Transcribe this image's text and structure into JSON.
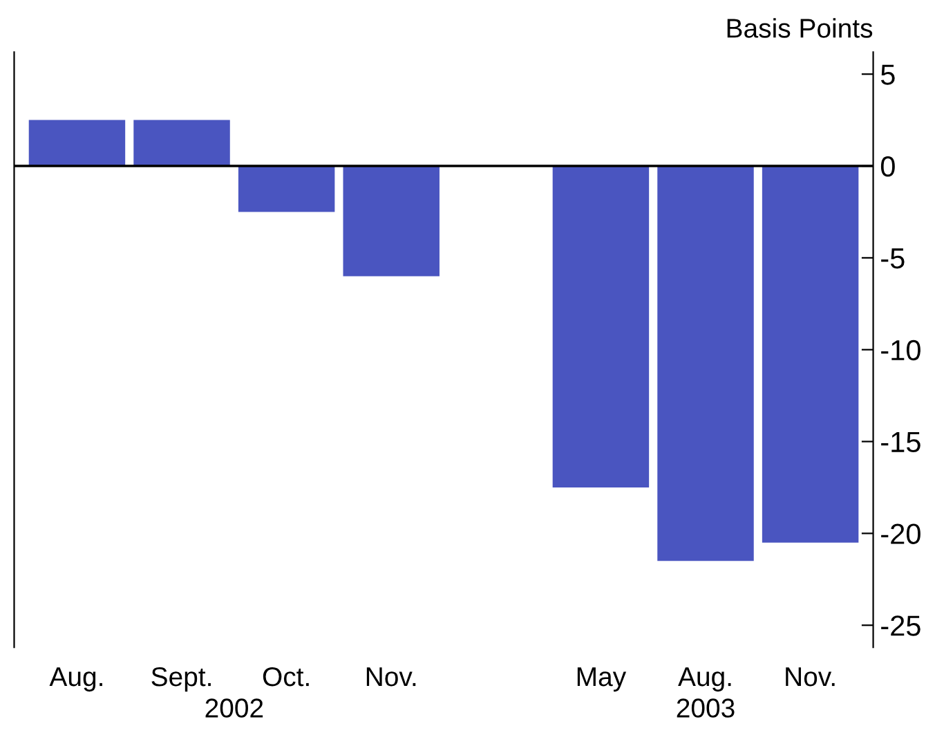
{
  "chart_data": {
    "type": "bar",
    "ylabel": "Basis Points",
    "categories": [
      "Aug.",
      "Sept.",
      "Oct.",
      "Nov.",
      null,
      "May",
      "Aug.",
      "Nov."
    ],
    "values": [
      2.5,
      2.5,
      -2.5,
      -6,
      null,
      -17.5,
      -21.5,
      -20.5
    ],
    "color": "#4a55c0",
    "ylim": [
      -26.2,
      6.2
    ],
    "yticks": [
      5,
      0,
      -5,
      -10,
      -15,
      -20,
      -25
    ],
    "ref_lines": [
      {
        "axis": "y",
        "value": 0,
        "color": "#000000"
      }
    ],
    "annotations": [
      "2002",
      "2003"
    ],
    "grid": false,
    "legend": false
  }
}
